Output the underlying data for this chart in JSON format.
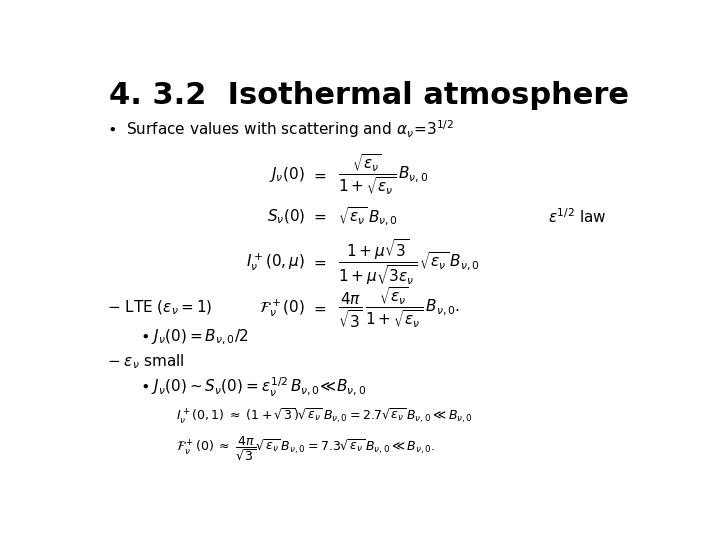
{
  "title": "4. 3.2  Isothermal atmosphere",
  "title_fontsize": 22,
  "bg_color": "#ffffff",
  "text_color": "#000000",
  "eq_fontsize": 11,
  "body_fontsize": 11,
  "approx_fontsize": 9
}
